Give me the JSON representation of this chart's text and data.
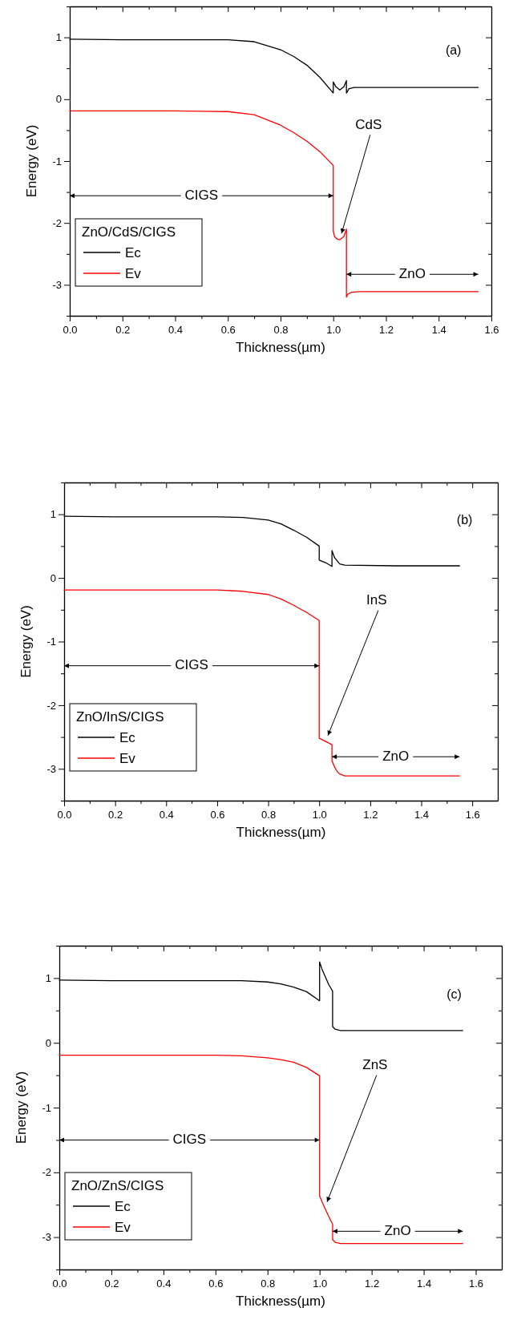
{
  "chart_data": [
    {
      "type": "line",
      "xlabel": "Thickness(µm)",
      "ylabel": "Energy (eV)",
      "legend_title": "ZnO/CdS/CIGS",
      "legend": "bottom left",
      "xlim": [
        0,
        1.6
      ],
      "ylim": [
        -3.5,
        1.5
      ],
      "xticks": [
        {
          "value": 0,
          "label": "0.0"
        },
        {
          "value": 0.1,
          "label": null
        },
        {
          "value": 0.2,
          "label": "0.2"
        },
        {
          "value": 0.3,
          "label": null
        },
        {
          "value": 0.4,
          "label": "0.4"
        },
        {
          "value": 0.5,
          "label": null
        },
        {
          "value": 0.6,
          "label": "0.6"
        },
        {
          "value": 0.7,
          "label": null
        },
        {
          "value": 0.8,
          "label": "0.8"
        },
        {
          "value": 0.9,
          "label": null
        },
        {
          "value": 1.0,
          "label": "1.0"
        },
        {
          "value": 1.1,
          "label": null
        },
        {
          "value": 1.2,
          "label": "1.2"
        },
        {
          "value": 1.3,
          "label": null
        },
        {
          "value": 1.4,
          "label": "1.4"
        },
        {
          "value": 1.5,
          "label": null
        },
        {
          "value": 1.6,
          "label": "1.6"
        }
      ],
      "yticks": [
        {
          "value": -3.5,
          "label": null
        },
        -3,
        {
          "value": -2.5,
          "label": null
        },
        -2,
        {
          "value": -1.5,
          "label": null
        },
        -1,
        {
          "value": -0.5,
          "label": null
        },
        0,
        {
          "value": 0.5,
          "label": null
        },
        1,
        {
          "value": 1.5,
          "label": null
        }
      ],
      "series": [
        {
          "name": "Ec",
          "color": "#000000",
          "x": [
            0,
            0.2,
            0.4,
            0.6,
            0.7,
            0.8,
            0.85,
            0.9,
            0.95,
            1.0,
            1.0,
            1.01,
            1.025,
            1.04,
            1.05,
            1.05,
            1.06,
            1.08,
            1.1,
            1.3,
            1.55
          ],
          "values": [
            0.97,
            0.96,
            0.96,
            0.96,
            0.93,
            0.8,
            0.69,
            0.55,
            0.35,
            0.1,
            0.28,
            0.2,
            0.15,
            0.2,
            0.3,
            0.1,
            0.17,
            0.19,
            0.19,
            0.19,
            0.19
          ]
        },
        {
          "name": "Ev",
          "color": "#ff0000",
          "x": [
            0,
            0.2,
            0.4,
            0.6,
            0.7,
            0.8,
            0.85,
            0.9,
            0.95,
            1.0,
            1.0,
            1.005,
            1.015,
            1.025,
            1.04,
            1.05,
            1.05,
            1.055,
            1.07,
            1.1,
            1.3,
            1.55
          ],
          "values": [
            -0.19,
            -0.19,
            -0.19,
            -0.2,
            -0.25,
            -0.42,
            -0.54,
            -0.68,
            -0.85,
            -1.07,
            -2.13,
            -2.22,
            -2.26,
            -2.27,
            -2.22,
            -2.1,
            -3.2,
            -3.15,
            -3.12,
            -3.11,
            -3.11,
            -3.11
          ]
        }
      ],
      "annotations": [
        "(a)",
        {
          "text": "CdS",
          "x": 1.025,
          "y": -2.27
        },
        {
          "text": "CIGS",
          "x": 1.0,
          "y": -1.56
        },
        "ZnO"
      ]
    },
    {
      "type": "line",
      "xlabel": "Thickness(µm)",
      "ylabel": "Energy (eV)",
      "legend_title": "ZnO/InS/CIGS",
      "legend": "bottom left",
      "xlim": [
        0,
        1.7
      ],
      "ylim": [
        -3.5,
        1.5
      ],
      "xticks": [
        {
          "value": 0,
          "label": "0.0"
        },
        {
          "value": 0.1,
          "label": null
        },
        {
          "value": 0.2,
          "label": "0.2"
        },
        {
          "value": 0.3,
          "label": null
        },
        {
          "value": 0.4,
          "label": "0.4"
        },
        {
          "value": 0.5,
          "label": null
        },
        {
          "value": 0.6,
          "label": "0.6"
        },
        {
          "value": 0.7,
          "label": null
        },
        {
          "value": 0.8,
          "label": "0.8"
        },
        {
          "value": 0.9,
          "label": null
        },
        {
          "value": 1.0,
          "label": "1.0"
        },
        {
          "value": 1.1,
          "label": null
        },
        {
          "value": 1.2,
          "label": "1.2"
        },
        {
          "value": 1.3,
          "label": null
        },
        {
          "value": 1.4,
          "label": "1.4"
        },
        {
          "value": 1.5,
          "label": null
        },
        {
          "value": 1.6,
          "label": "1.6"
        }
      ],
      "yticks": [
        {
          "value": -3.5,
          "label": null
        },
        -3,
        {
          "value": -2.5,
          "label": null
        },
        -2,
        {
          "value": -1.5,
          "label": null
        },
        -1,
        {
          "value": -0.5,
          "label": null
        },
        0,
        {
          "value": 0.5,
          "label": null
        },
        1,
        {
          "value": 1.5,
          "label": null
        }
      ],
      "series": [
        {
          "name": "Ec",
          "color": "#000000",
          "x": [
            0,
            0.2,
            0.4,
            0.6,
            0.7,
            0.8,
            0.85,
            0.9,
            0.95,
            1.0,
            1.0,
            1.025,
            1.05,
            1.05,
            1.06,
            1.08,
            1.1,
            1.3,
            1.55
          ],
          "values": [
            0.97,
            0.96,
            0.96,
            0.96,
            0.95,
            0.91,
            0.85,
            0.75,
            0.64,
            0.5,
            0.28,
            0.24,
            0.18,
            0.43,
            0.32,
            0.22,
            0.2,
            0.19,
            0.19
          ]
        },
        {
          "name": "Ev",
          "color": "#ff0000",
          "x": [
            0,
            0.2,
            0.4,
            0.6,
            0.7,
            0.8,
            0.85,
            0.9,
            0.95,
            1.0,
            1.0,
            1.025,
            1.05,
            1.05,
            1.06,
            1.07,
            1.08,
            1.1,
            1.3,
            1.55
          ],
          "values": [
            -0.19,
            -0.19,
            -0.19,
            -0.19,
            -0.21,
            -0.26,
            -0.33,
            -0.43,
            -0.54,
            -0.67,
            -2.52,
            -2.57,
            -2.62,
            -2.87,
            -2.97,
            -3.04,
            -3.08,
            -3.11,
            -3.11,
            -3.11
          ]
        }
      ],
      "annotations": [
        "(b)",
        {
          "text": "InS",
          "x": 1.025,
          "y": -2.57
        },
        {
          "text": "CIGS",
          "x": 1.0,
          "y": -1.38
        },
        "ZnO"
      ]
    },
    {
      "type": "line",
      "xlabel": "Thickness(µm)",
      "ylabel": "Energy (eV)",
      "legend_title": "ZnO/ZnS/CIGS",
      "legend": "bottom left",
      "xlim": [
        0,
        1.7
      ],
      "ylim": [
        -3.5,
        1.5
      ],
      "xticks": [
        {
          "value": 0,
          "label": "0.0"
        },
        {
          "value": 0.1,
          "label": null
        },
        {
          "value": 0.2,
          "label": "0.2"
        },
        {
          "value": 0.3,
          "label": null
        },
        {
          "value": 0.4,
          "label": "0.4"
        },
        {
          "value": 0.5,
          "label": null
        },
        {
          "value": 0.6,
          "label": "0.6"
        },
        {
          "value": 0.7,
          "label": null
        },
        {
          "value": 0.8,
          "label": "0.8"
        },
        {
          "value": 0.9,
          "label": null
        },
        {
          "value": 1.0,
          "label": "1.0"
        },
        {
          "value": 1.1,
          "label": null
        },
        {
          "value": 1.2,
          "label": "1.2"
        },
        {
          "value": 1.3,
          "label": null
        },
        {
          "value": 1.4,
          "label": "1.4"
        },
        {
          "value": 1.5,
          "label": null
        },
        {
          "value": 1.6,
          "label": "1.6"
        }
      ],
      "yticks": [
        {
          "value": -3.5,
          "label": null
        },
        -3,
        {
          "value": -2.5,
          "label": null
        },
        -2,
        {
          "value": -1.5,
          "label": null
        },
        -1,
        {
          "value": -0.5,
          "label": null
        },
        0,
        {
          "value": 0.5,
          "label": null
        },
        1,
        {
          "value": 1.5,
          "label": null
        }
      ],
      "series": [
        {
          "name": "Ec",
          "color": "#000000",
          "x": [
            0,
            0.2,
            0.4,
            0.6,
            0.7,
            0.8,
            0.85,
            0.9,
            0.95,
            1.0,
            1.0,
            1.01,
            1.02,
            1.035,
            1.05,
            1.05,
            1.06,
            1.08,
            1.1,
            1.3,
            1.55
          ],
          "values": [
            0.97,
            0.96,
            0.96,
            0.96,
            0.96,
            0.94,
            0.91,
            0.86,
            0.79,
            0.65,
            1.25,
            1.13,
            1.04,
            0.9,
            0.8,
            0.25,
            0.21,
            0.19,
            0.19,
            0.19,
            0.19
          ]
        },
        {
          "name": "Ev",
          "color": "#ff0000",
          "x": [
            0,
            0.2,
            0.4,
            0.6,
            0.7,
            0.8,
            0.85,
            0.9,
            0.95,
            1.0,
            1.0,
            1.01,
            1.02,
            1.035,
            1.05,
            1.05,
            1.06,
            1.08,
            1.1,
            1.3,
            1.55
          ],
          "values": [
            -0.19,
            -0.19,
            -0.19,
            -0.19,
            -0.2,
            -0.23,
            -0.26,
            -0.3,
            -0.38,
            -0.51,
            -2.36,
            -2.46,
            -2.55,
            -2.68,
            -2.8,
            -3.04,
            -3.08,
            -3.1,
            -3.1,
            -3.1,
            -3.1
          ]
        }
      ],
      "annotations": [
        "(c)",
        {
          "text": "ZnS",
          "x": 1.02,
          "y": -2.55
        },
        {
          "text": "CIGS",
          "x": 1.0,
          "y": -1.5
        },
        "ZnO"
      ]
    }
  ]
}
